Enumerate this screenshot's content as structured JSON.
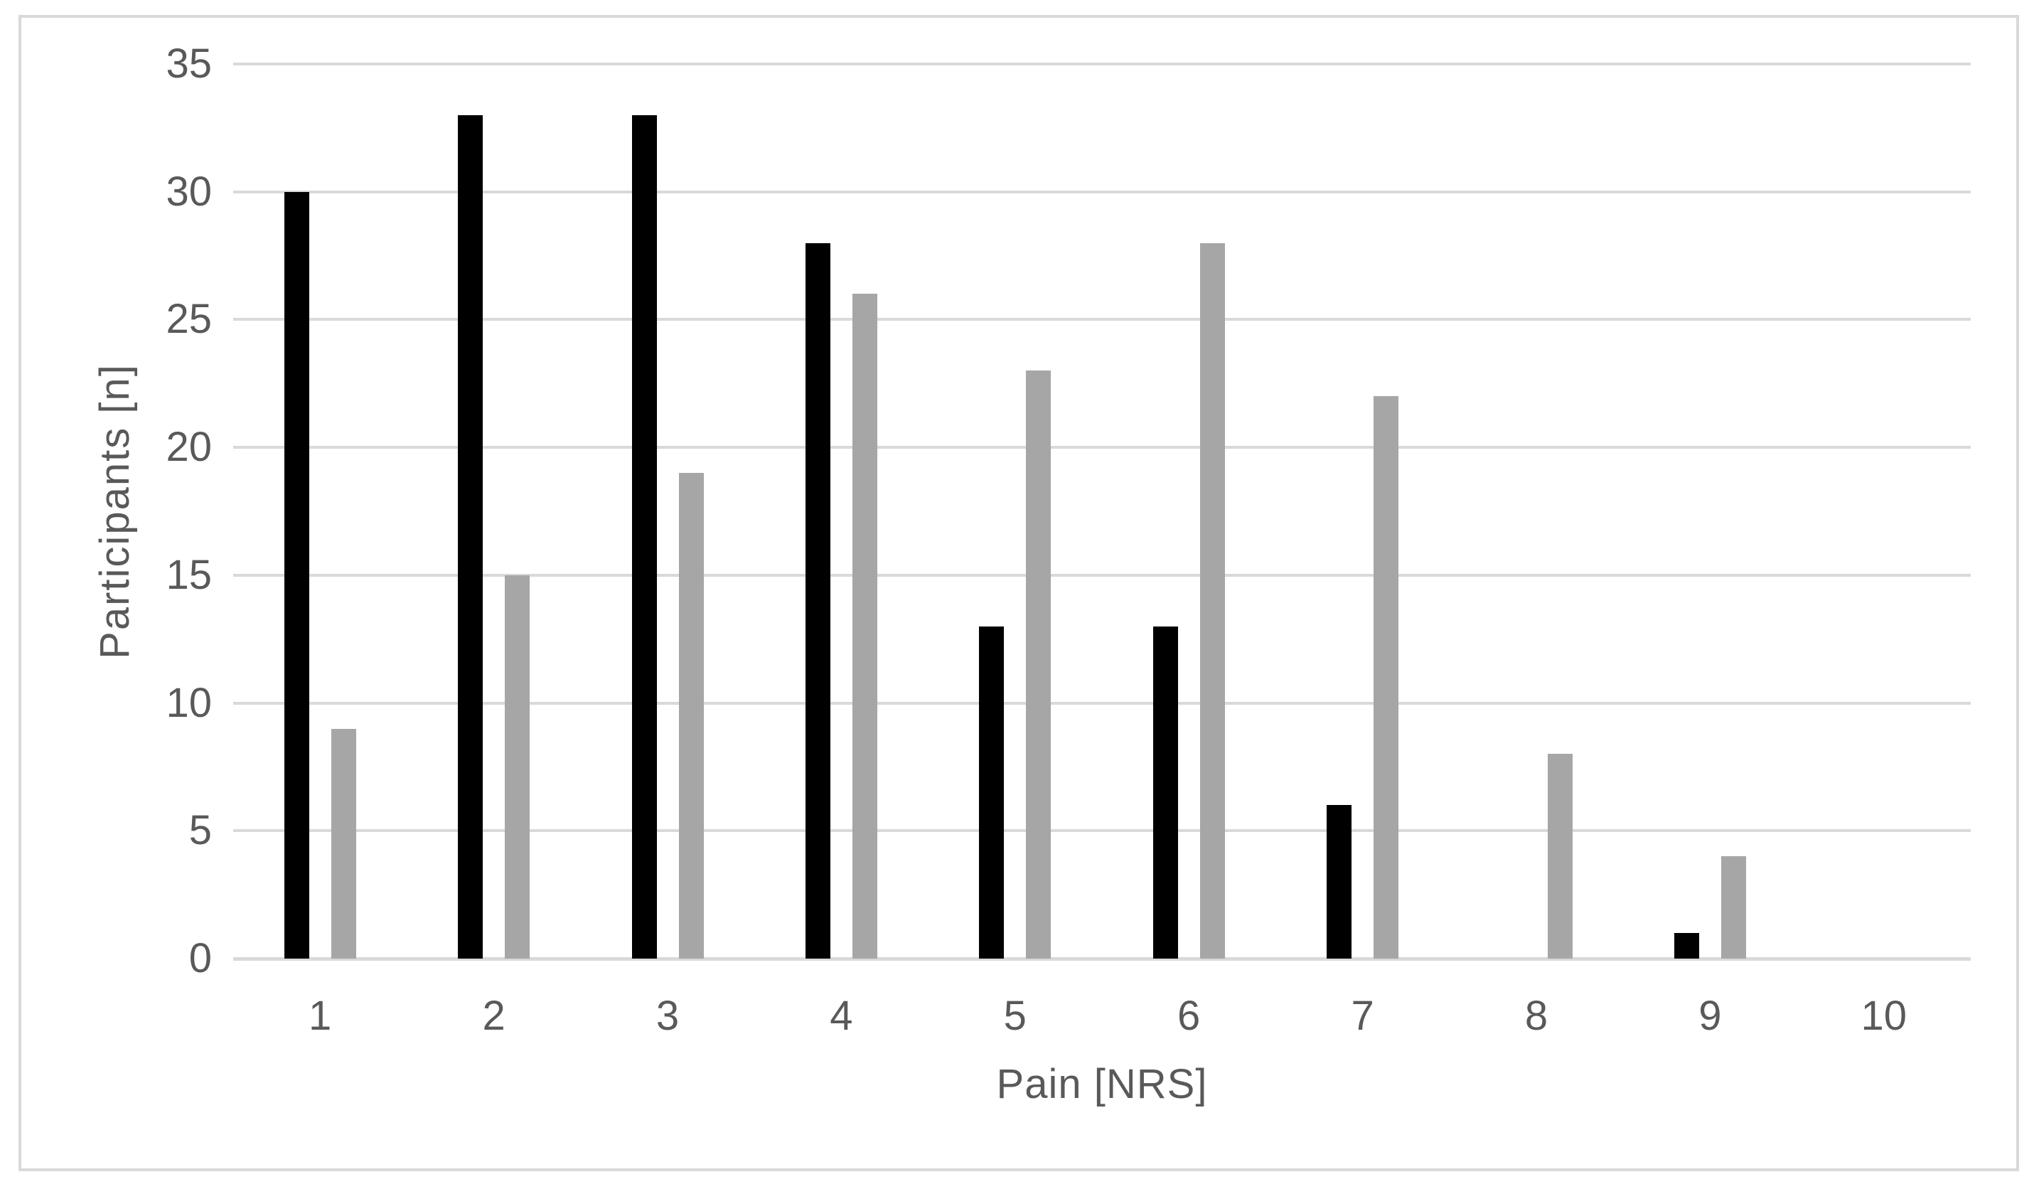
{
  "chart_data": {
    "type": "bar",
    "title": "",
    "categories": [
      "1",
      "2",
      "3",
      "4",
      "5",
      "6",
      "7",
      "8",
      "9",
      "10"
    ],
    "series": [
      {
        "name": "black",
        "color": "#000000",
        "values": [
          30,
          33,
          33,
          28,
          13,
          13,
          6,
          0,
          1,
          0
        ]
      },
      {
        "name": "gray",
        "color": "#a6a6a6",
        "values": [
          9,
          15,
          19,
          26,
          23,
          28,
          22,
          8,
          4,
          0
        ]
      }
    ],
    "xlabel": "Pain [NRS]",
    "ylabel": "Participants [n]",
    "ylim": [
      0,
      35
    ],
    "yticks": [
      0,
      5,
      10,
      15,
      20,
      25,
      30,
      35
    ],
    "grid": true,
    "legend": "none",
    "gridline_color": "#d9d9d9",
    "axis_line_color": "#d9d9d9",
    "text_color": "#595959",
    "frame_border_color": "#d9d9d9",
    "background_color": "#ffffff"
  }
}
